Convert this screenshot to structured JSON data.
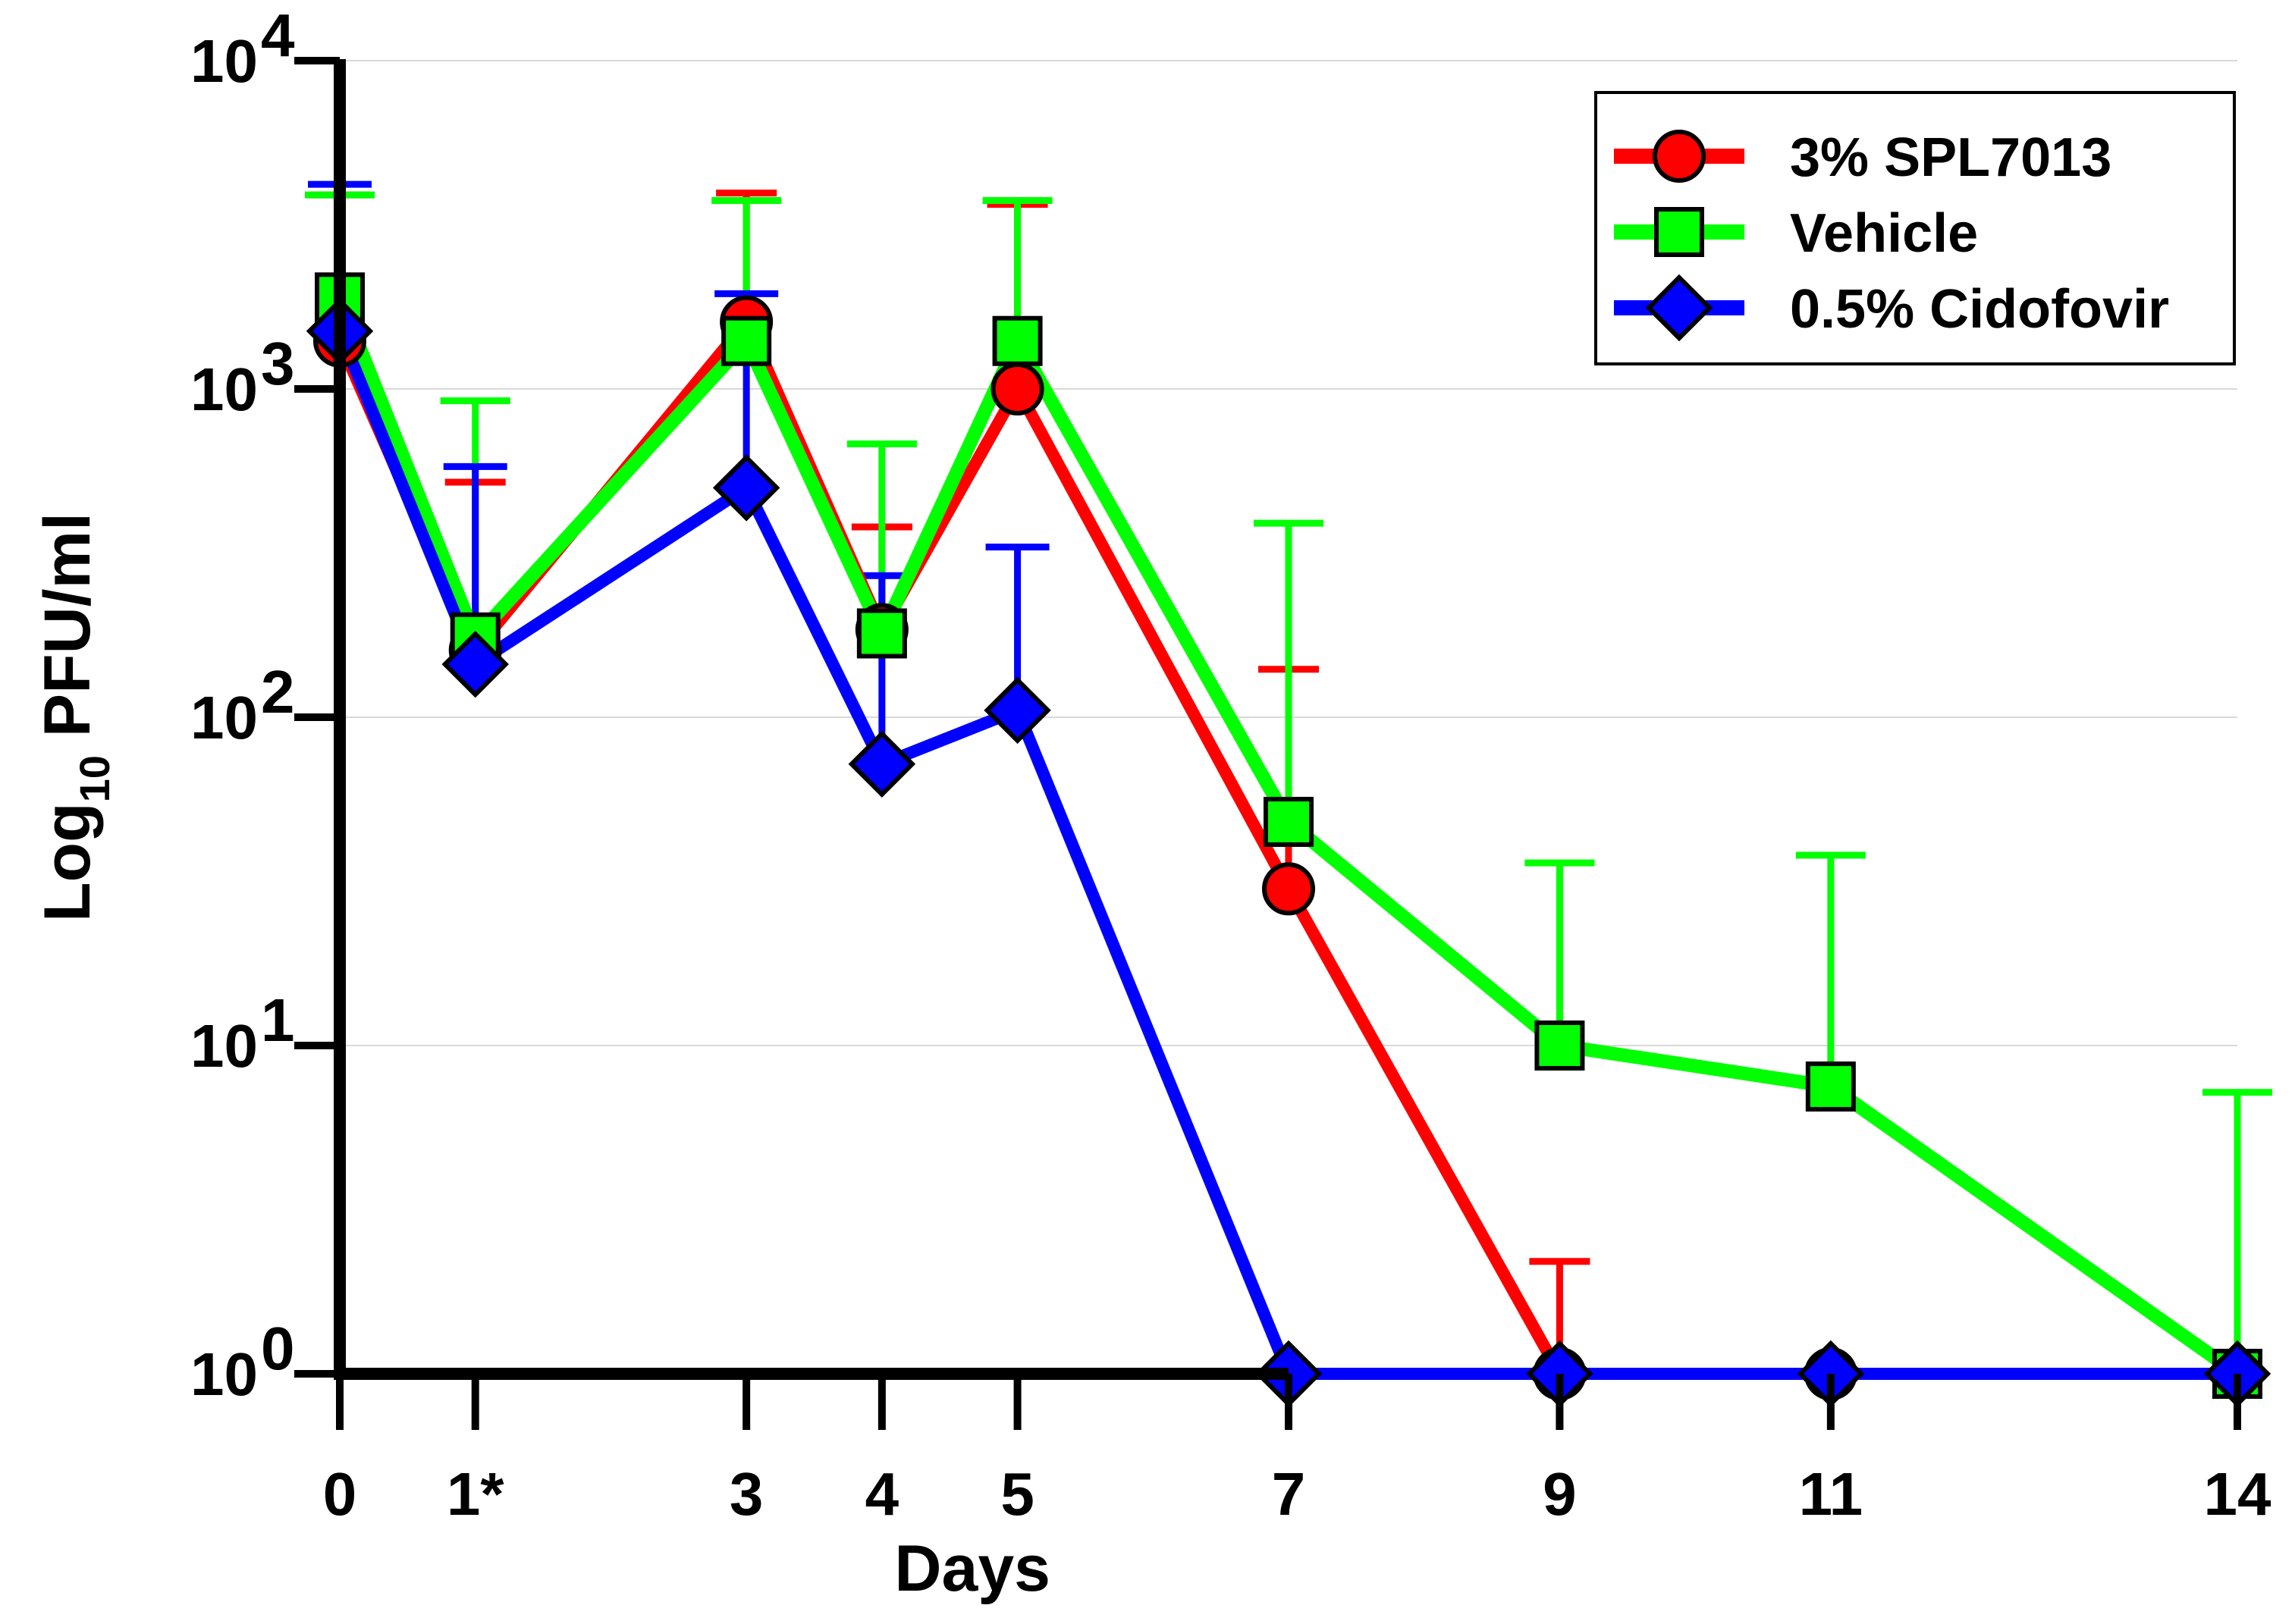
{
  "chart_data": {
    "type": "line",
    "title": "",
    "xlabel": "Days",
    "ylabel": "Log10 PFU/ml",
    "ylabel_main": "Log",
    "ylabel_sub": "10",
    "ylabel_rest": " PFU/ml",
    "yscale": "log",
    "ylim": [
      1,
      10000
    ],
    "x_ticks": [
      {
        "value": 0,
        "label": "0"
      },
      {
        "value": 1,
        "label": "1*"
      },
      {
        "value": 3,
        "label": "3"
      },
      {
        "value": 4,
        "label": "4"
      },
      {
        "value": 5,
        "label": "5"
      },
      {
        "value": 7,
        "label": "7"
      },
      {
        "value": 9,
        "label": "9"
      },
      {
        "value": 11,
        "label": "11"
      },
      {
        "value": 14,
        "label": "14"
      }
    ],
    "y_ticks": [
      {
        "value": 1,
        "base": "10",
        "exp": "0"
      },
      {
        "value": 10,
        "base": "10",
        "exp": "1"
      },
      {
        "value": 100,
        "base": "10",
        "exp": "2"
      },
      {
        "value": 1000,
        "base": "10",
        "exp": "3"
      },
      {
        "value": 10000,
        "base": "10",
        "exp": "4"
      }
    ],
    "grid": true,
    "legend_position": "top-right",
    "x": [
      0,
      1,
      3,
      4,
      5,
      7,
      9,
      11,
      14
    ],
    "series": [
      {
        "name": "3% SPL7013",
        "color": "#ff0000",
        "marker": "circle",
        "values": [
          1400,
          160,
          1600,
          185,
          1000,
          30,
          1,
          1,
          1
        ],
        "error_upper": [
          3900,
          520,
          3950,
          380,
          3650,
          140,
          2.2,
          null,
          null
        ]
      },
      {
        "name": "Vehicle",
        "color": "#00ff00",
        "marker": "square",
        "values": [
          1900,
          175,
          1400,
          180,
          1400,
          48,
          10,
          7.5,
          1
        ],
        "error_upper": [
          3900,
          920,
          3750,
          680,
          3750,
          390,
          36,
          38,
          7.2
        ]
      },
      {
        "name": "0.5% Cidofovir",
        "color": "#0000ff",
        "marker": "diamond",
        "values": [
          1500,
          145,
          500,
          72,
          105,
          1,
          1,
          1,
          1
        ],
        "error_upper": [
          4200,
          580,
          1950,
          270,
          330,
          null,
          null,
          null,
          null
        ]
      }
    ]
  }
}
